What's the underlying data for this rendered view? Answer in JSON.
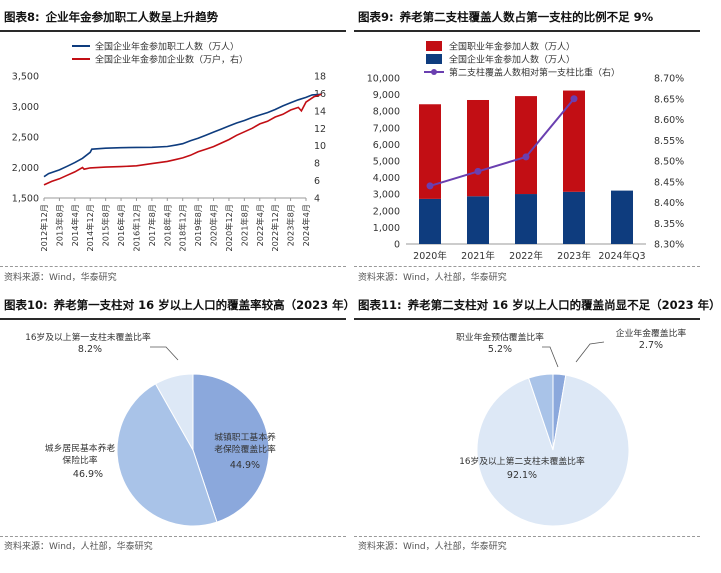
{
  "figures": [
    {
      "id": "fig8",
      "number": "图表8:",
      "title": "企业年金参加职工人数呈上升趋势",
      "source": "资料来源：Wind，华泰研究"
    },
    {
      "id": "fig9",
      "number": "图表9:",
      "title": "养老第二支柱覆盖人数占第一支柱的比例不足 9%",
      "source": "资料来源：Wind，人社部，华泰研究"
    },
    {
      "id": "fig10",
      "number": "图表10:",
      "title": "养老第一支柱对 16 岁以上人口的覆盖率较高（2023 年）",
      "source": "资料来源：Wind，人社部，华泰研究"
    },
    {
      "id": "fig11",
      "number": "图表11:",
      "title": "养老第二支柱对 16 岁以上人口的覆盖尚显不足（2023 年）",
      "source": "资料来源：Wind，人社部，华泰研究"
    }
  ],
  "colors": {
    "navy": "#0e3c7e",
    "red": "#c20e14",
    "purple": "#6a3fb0",
    "pie_dark": "#8ba8dc",
    "pie_mid": "#a9c3e8",
    "pie_light": "#dde8f6"
  },
  "chart_data": [
    {
      "type": "line",
      "id": "fig8",
      "x_ticks": [
        "2012年12月",
        "2013年8月",
        "2014年4月",
        "2014年12月",
        "2015年8月",
        "2016年4月",
        "2016年12月",
        "2017年8月",
        "2018年4月",
        "2018年12月",
        "2019年8月",
        "2020年4月",
        "2020年12月",
        "2021年8月",
        "2022年4月",
        "2022年12月",
        "2023年8月",
        "2024年4月"
      ],
      "y_left": {
        "min": 1500,
        "max": 3500,
        "ticks": [
          "1,500",
          "2,000",
          "2,500",
          "3,000",
          "3,500"
        ],
        "tick_values": [
          1500,
          2000,
          2500,
          3000,
          3500
        ]
      },
      "y_right": {
        "min": 4,
        "max": 18,
        "ticks": [
          "4",
          "6",
          "8",
          "10",
          "12",
          "14",
          "16",
          "18"
        ],
        "tick_values": [
          4,
          6,
          8,
          10,
          12,
          14,
          16,
          18
        ]
      },
      "series": [
        {
          "name": "全国企业年金参加职工人数（万人）",
          "axis": "left",
          "color": "#0e3c7e",
          "points": [
            [
              0,
              1850
            ],
            [
              0.3,
              1900
            ],
            [
              1,
              1960
            ],
            [
              1.5,
              2020
            ],
            [
              2,
              2080
            ],
            [
              2.5,
              2150
            ],
            [
              3,
              2250
            ],
            [
              3.1,
              2300
            ],
            [
              4,
              2316
            ],
            [
              5,
              2325
            ],
            [
              6,
              2330
            ],
            [
              7,
              2331
            ],
            [
              8,
              2345
            ],
            [
              8.6,
              2370
            ],
            [
              9,
              2390
            ],
            [
              9.5,
              2440
            ],
            [
              10,
              2480
            ],
            [
              10.5,
              2530
            ],
            [
              11,
              2580
            ],
            [
              11.5,
              2630
            ],
            [
              12,
              2680
            ],
            [
              12.5,
              2730
            ],
            [
              13,
              2770
            ],
            [
              13.5,
              2820
            ],
            [
              14,
              2860
            ],
            [
              14.5,
              2900
            ],
            [
              15,
              2950
            ],
            [
              15.5,
              3010
            ],
            [
              16,
              3060
            ],
            [
              16.5,
              3110
            ],
            [
              17,
              3150
            ],
            [
              17.4,
              3190
            ],
            [
              18,
              3200
            ]
          ]
        },
        {
          "name": "全国企业年金参加企业数（万户，右）",
          "axis": "right",
          "color": "#c20e14",
          "points": [
            [
              0,
              5.5
            ],
            [
              0.5,
              5.9
            ],
            [
              1,
              6.2
            ],
            [
              1.5,
              6.6
            ],
            [
              2,
              7.0
            ],
            [
              2.5,
              7.5
            ],
            [
              2.6,
              7.3
            ],
            [
              3,
              7.45
            ],
            [
              4,
              7.55
            ],
            [
              5,
              7.6
            ],
            [
              6,
              7.7
            ],
            [
              7,
              7.95
            ],
            [
              8,
              8.2
            ],
            [
              8.5,
              8.4
            ],
            [
              9,
              8.6
            ],
            [
              9.5,
              8.9
            ],
            [
              10,
              9.3
            ],
            [
              10.5,
              9.6
            ],
            [
              11,
              9.9
            ],
            [
              11.5,
              10.3
            ],
            [
              12,
              10.7
            ],
            [
              12.5,
              11.2
            ],
            [
              13,
              11.6
            ],
            [
              13.5,
              12.0
            ],
            [
              14,
              12.5
            ],
            [
              14.5,
              12.8
            ],
            [
              15,
              13.3
            ],
            [
              15.5,
              13.6
            ],
            [
              16,
              14.1
            ],
            [
              16.5,
              14.4
            ],
            [
              16.7,
              14.0
            ],
            [
              17,
              15.0
            ],
            [
              17.5,
              15.6
            ],
            [
              18,
              15.9
            ]
          ]
        }
      ]
    },
    {
      "type": "bar+line",
      "id": "fig9",
      "categories": [
        "2020年",
        "2021年",
        "2022年",
        "2023年",
        "2024年Q3"
      ],
      "y_left": {
        "min": 0,
        "max": 10000,
        "ticks": [
          "0",
          "1,000",
          "2,000",
          "3,000",
          "4,000",
          "5,000",
          "6,000",
          "7,000",
          "8,000",
          "9,000",
          "10,000"
        ],
        "tick_values": [
          0,
          1000,
          2000,
          3000,
          4000,
          5000,
          6000,
          7000,
          8000,
          9000,
          10000
        ]
      },
      "y_right": {
        "min": 8.3,
        "max": 8.7,
        "ticks": [
          "8.30%",
          "8.35%",
          "8.40%",
          "8.45%",
          "8.50%",
          "8.55%",
          "8.60%",
          "8.65%",
          "8.70%"
        ],
        "tick_values": [
          8.3,
          8.35,
          8.4,
          8.45,
          8.5,
          8.55,
          8.6,
          8.65,
          8.7
        ]
      },
      "series": [
        {
          "name": "全国职业年金参加人数（万人）",
          "kind": "bar-stack-top",
          "color": "#c20e14",
          "values": [
            5700,
            5800,
            5900,
            6100,
            null
          ]
        },
        {
          "name": "全国企业年金参加人数（万人）",
          "kind": "bar-stack-bottom",
          "color": "#0e3c7e",
          "values": [
            2718,
            2875,
            3010,
            3144,
            3217
          ]
        },
        {
          "name": "第二支柱覆盖人数相对第一支柱比重（右）",
          "kind": "line",
          "color": "#6a3fb0",
          "values": [
            8.44,
            8.475,
            8.51,
            8.65,
            null
          ]
        }
      ]
    },
    {
      "type": "pie",
      "id": "fig10",
      "start_angle_deg": 0,
      "slices": [
        {
          "label": "城镇职工基本养老保险覆盖比率",
          "value": 44.9,
          "display": "44.9%",
          "color": "#8ba8dc"
        },
        {
          "label": "城乡居民基本养老保险比率",
          "value": 46.9,
          "display": "46.9%",
          "color": "#a9c3e8"
        },
        {
          "label": "16岁及以上第一支柱未覆盖比率",
          "value": 8.2,
          "display": "8.2%",
          "color": "#dde8f6"
        }
      ]
    },
    {
      "type": "pie",
      "id": "fig11",
      "start_angle_deg": 0,
      "slices": [
        {
          "label": "企业年金覆盖比率",
          "value": 2.7,
          "display": "2.7%",
          "color": "#8ba8dc"
        },
        {
          "label": "16岁及以上第二支柱未覆盖比率",
          "value": 92.1,
          "display": "92.1%",
          "color": "#dde8f6"
        },
        {
          "label": "职业年金预估覆盖比率",
          "value": 5.2,
          "display": "5.2%",
          "color": "#a9c3e8"
        }
      ]
    }
  ]
}
